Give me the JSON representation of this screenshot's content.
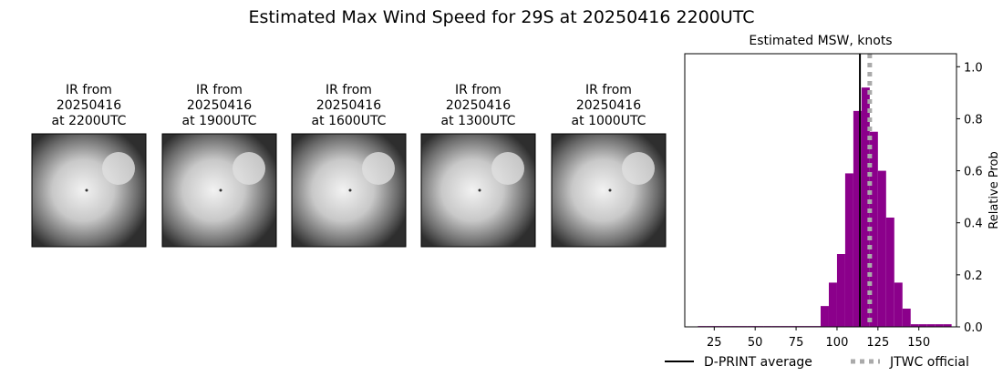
{
  "title": "Estimated Max Wind Speed for 29S at 20250416 2200UTC",
  "images": [
    {
      "title": [
        "IR from",
        "20250416",
        "at 2200UTC"
      ]
    },
    {
      "title": [
        "IR from",
        "20250416",
        "at 1900UTC"
      ]
    },
    {
      "title": [
        "IR from",
        "20250416",
        "at 1600UTC"
      ]
    },
    {
      "title": [
        "IR from",
        "20250416",
        "at 1300UTC"
      ]
    },
    {
      "title": [
        "IR from",
        "20250416",
        "at 1000UTC"
      ]
    }
  ],
  "chart_data": {
    "type": "histogram",
    "title": "Estimated MSW, knots",
    "y_label": "Relative Prob",
    "color": "#8b008b",
    "bins": [
      15,
      20,
      25,
      30,
      35,
      40,
      45,
      50,
      55,
      60,
      65,
      70,
      75,
      80,
      85,
      90,
      95,
      100,
      105,
      110,
      115,
      120,
      125,
      130,
      135,
      140,
      145,
      150,
      155,
      160,
      165,
      170
    ],
    "values": [
      0.003,
      0.003,
      0.003,
      0.003,
      0.003,
      0.003,
      0.003,
      0.003,
      0.003,
      0.003,
      0.003,
      0.003,
      0.003,
      0.003,
      0.003,
      0.08,
      0.17,
      0.28,
      0.59,
      0.83,
      0.92,
      0.75,
      0.6,
      0.42,
      0.17,
      0.07,
      0.01,
      0.01,
      0.01,
      0.01,
      0.01
    ],
    "xlim": [
      7,
      173
    ],
    "ylim": [
      0,
      1.05
    ],
    "xticks": [
      25,
      50,
      75,
      100,
      125,
      150
    ],
    "yticks": [
      {
        "value": 0,
        "label": "0.0"
      },
      {
        "value": 0.2,
        "label": "0.2"
      },
      {
        "value": 0.4,
        "label": "0.4"
      },
      {
        "value": 0.6,
        "label": "0.6"
      },
      {
        "value": 0.8,
        "label": "0.8"
      },
      {
        "value": 1,
        "label": "1.0"
      }
    ],
    "lines": [
      {
        "name": "D-PRINT average",
        "value": 114,
        "color": "#000000",
        "style": "solid"
      },
      {
        "name": "JTWC official",
        "value": 120,
        "color": "#aaaaaa",
        "style": "dotted"
      }
    ]
  }
}
